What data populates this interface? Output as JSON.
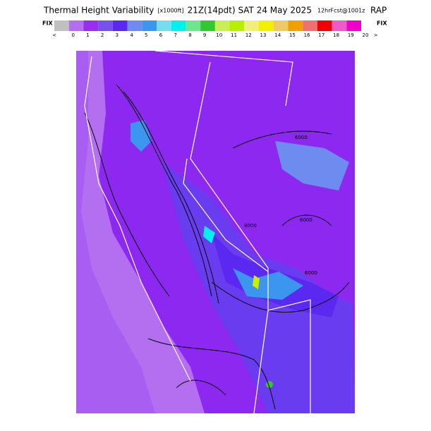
{
  "header": {
    "title": "Thermal Height Variability",
    "units": "[x1000ft]",
    "time": "21Z(14pdt) SAT 24 May 2025",
    "forecast": "12hrFcst@1001z",
    "model": "RAP"
  },
  "colorbar": {
    "left_label": "FIX",
    "right_label": "FIX",
    "under_label": "<",
    "over_label": ">",
    "ticks": [
      0,
      1,
      2,
      3,
      4,
      5,
      6,
      7,
      8,
      9,
      10,
      11,
      12,
      13,
      14,
      15,
      16,
      17,
      18,
      19,
      20
    ],
    "colors": [
      "#c0c0c0",
      "#b46ef0",
      "#9a2ef0",
      "#7850f0",
      "#5a28f0",
      "#6e8cf0",
      "#3c96f0",
      "#78dcf0",
      "#00f0f0",
      "#6ee68c",
      "#32c832",
      "#c8f050",
      "#b4f000",
      "#f0f078",
      "#f0f000",
      "#f0c864",
      "#f0a000",
      "#f07070",
      "#f00000",
      "#f05ac8",
      "#f000c8"
    ]
  },
  "map": {
    "contour_labels": [
      "6000",
      "6000",
      "6000",
      "8000"
    ]
  }
}
